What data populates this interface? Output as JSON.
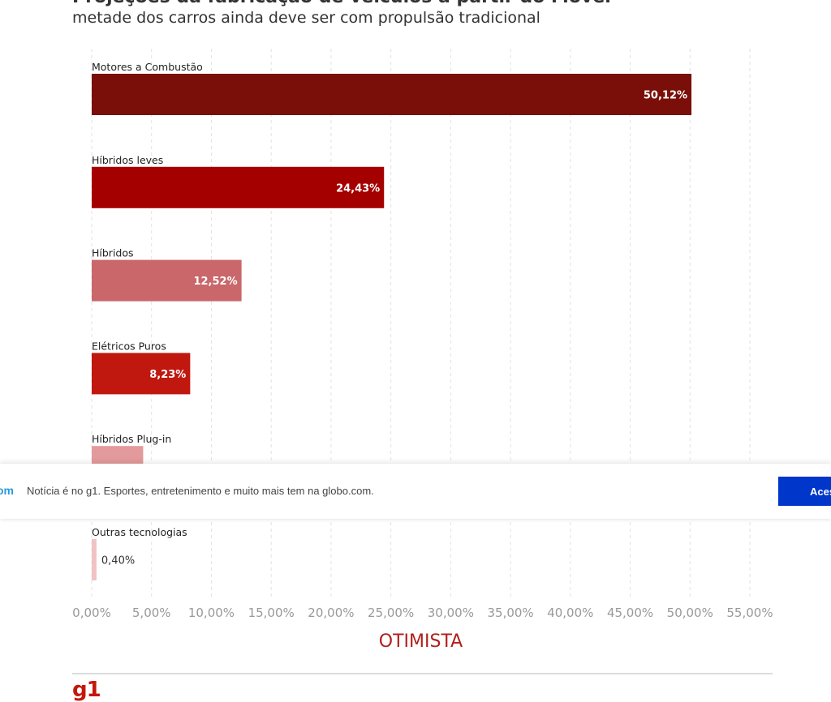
{
  "header": {
    "title": "Projeções da fabricação de veículos a partir do Mover",
    "subtitle": "metade dos carros ainda deve ser com propulsão tradicional"
  },
  "chart_data": {
    "type": "bar",
    "orientation": "horizontal",
    "categories": [
      "Motores a Combustão",
      "Híbridos leves",
      "Híbridos",
      "Elétricos Puros",
      "Híbridos Plug-in",
      "Outras tecnologias"
    ],
    "values": [
      50.12,
      24.43,
      12.52,
      8.23,
      4.3,
      0.4
    ],
    "value_labels": [
      "50,12%",
      "24,43%",
      "12,52%",
      "8,23%",
      "",
      "0,40%"
    ],
    "colors": [
      "#7a0f0a",
      "#a50000",
      "#c9676a",
      "#c0170f",
      "#e39a9c",
      "#f0c2c4"
    ],
    "label_inside": [
      true,
      true,
      true,
      true,
      true,
      false
    ],
    "label_color": [
      "#ffffff",
      "#ffffff",
      "#ffffff",
      "#ffffff",
      "#ffffff",
      "#333333"
    ],
    "xlabel": "OTIMISTA",
    "xlim": [
      0,
      55
    ],
    "xticks": [
      "0,00%",
      "5,00%",
      "10,00%",
      "15,00%",
      "20,00%",
      "25,00%",
      "30,00%",
      "35,00%",
      "40,00%",
      "45,00%",
      "50,00%",
      "55,00%"
    ],
    "grid": true
  },
  "footer": {
    "logo": "g1"
  },
  "banner": {
    "brand": "om",
    "text": "Notícia é no g1. Esportes, entretenimento e muito mais tem na globo.com.",
    "button_label": "Acessar"
  }
}
